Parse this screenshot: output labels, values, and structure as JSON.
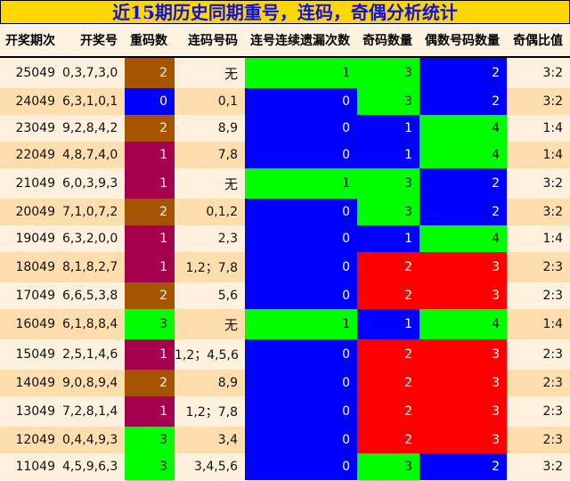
{
  "title": "近15期历史同期重号，连码，奇偶分析统计",
  "headers": [
    "开奖期次",
    "开奖号",
    "重码数",
    "连码号码",
    "连号连续遗漏次数",
    "奇码数量",
    "偶数号码数量",
    "奇偶比值"
  ],
  "colors": {
    "brown": "#A65400",
    "blue": "#0000FF",
    "maroon": "#A50050",
    "green": "#00FF00",
    "red": "#FF0000"
  },
  "rows": [
    {
      "period": "25049",
      "numbers": "0,3,7,3,0",
      "repeat": "2",
      "consecutive": "无",
      "miss": "1",
      "odd": "3",
      "even": "2",
      "ratio": "3:2"
    },
    {
      "period": "24049",
      "numbers": "6,3,1,0,1",
      "repeat": "0",
      "consecutive": "0,1",
      "miss": "0",
      "odd": "3",
      "even": "2",
      "ratio": "3:2"
    },
    {
      "period": "23049",
      "numbers": "9,2,8,4,2",
      "repeat": "2",
      "consecutive": "8,9",
      "miss": "0",
      "odd": "1",
      "even": "4",
      "ratio": "1:4"
    },
    {
      "period": "22049",
      "numbers": "4,8,7,4,0",
      "repeat": "1",
      "consecutive": "7,8",
      "miss": "0",
      "odd": "1",
      "even": "4",
      "ratio": "1:4"
    },
    {
      "period": "21049",
      "numbers": "6,0,3,9,3",
      "repeat": "1",
      "consecutive": "无",
      "miss": "1",
      "odd": "3",
      "even": "2",
      "ratio": "3:2"
    },
    {
      "period": "20049",
      "numbers": "7,1,0,7,2",
      "repeat": "2",
      "consecutive": "0,1,2",
      "miss": "0",
      "odd": "3",
      "even": "2",
      "ratio": "3:2"
    },
    {
      "period": "19049",
      "numbers": "6,3,2,0,0",
      "repeat": "1",
      "consecutive": "2,3",
      "miss": "0",
      "odd": "1",
      "even": "4",
      "ratio": "1:4"
    },
    {
      "period": "18049",
      "numbers": "8,1,8,2,7",
      "repeat": "1",
      "consecutive": "1,2；7,8",
      "miss": "0",
      "odd": "2",
      "even": "3",
      "ratio": "2:3"
    },
    {
      "period": "17049",
      "numbers": "6,6,5,3,8",
      "repeat": "2",
      "consecutive": "5,6",
      "miss": "0",
      "odd": "2",
      "even": "3",
      "ratio": "2:3"
    },
    {
      "period": "16049",
      "numbers": "6,1,8,8,4",
      "repeat": "3",
      "consecutive": "无",
      "miss": "1",
      "odd": "1",
      "even": "4",
      "ratio": "1:4"
    },
    {
      "period": "15049",
      "numbers": "2,5,1,4,6",
      "repeat": "1",
      "consecutive": "1,2；4,5,6",
      "miss": "0",
      "odd": "2",
      "even": "3",
      "ratio": "2:3"
    },
    {
      "period": "14049",
      "numbers": "9,0,8,9,4",
      "repeat": "2",
      "consecutive": "8,9",
      "miss": "0",
      "odd": "2",
      "even": "3",
      "ratio": "2:3"
    },
    {
      "period": "13049",
      "numbers": "7,2,8,1,4",
      "repeat": "1",
      "consecutive": "1,2；7,8",
      "miss": "0",
      "odd": "2",
      "even": "3",
      "ratio": "2:3"
    },
    {
      "period": "12049",
      "numbers": "0,4,4,9,3",
      "repeat": "3",
      "consecutive": "3,4",
      "miss": "0",
      "odd": "2",
      "even": "3",
      "ratio": "2:3"
    },
    {
      "period": "11049",
      "numbers": "4,5,9,6,3",
      "repeat": "3",
      "consecutive": "3,4,5,6",
      "miss": "0",
      "odd": "3",
      "even": "2",
      "ratio": "3:2"
    }
  ]
}
